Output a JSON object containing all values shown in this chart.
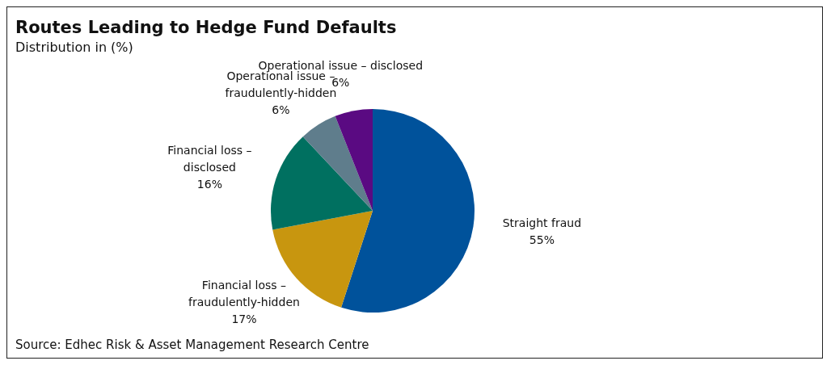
{
  "chart_data": {
    "type": "pie",
    "title": "Routes Leading to Hedge Fund Defaults",
    "subtitle": "Distribution in (%)",
    "categories": [
      "Straight fraud",
      "Financial loss – fraudulently-hidden",
      "Financial loss – disclosed",
      "Operational issue – fraudulently-hidden",
      "Operational issue – disclosed"
    ],
    "values": [
      55,
      17,
      16,
      6,
      6
    ],
    "value_labels": [
      "55%",
      "17%",
      "16%",
      "6%",
      "6%"
    ],
    "colors": [
      "#00529b",
      "#c8960f",
      "#007060",
      "#5f7d8c",
      "#5a0a82"
    ],
    "annotations": [
      "Source: Edhec Risk & Asset Management Research Centre"
    ]
  }
}
